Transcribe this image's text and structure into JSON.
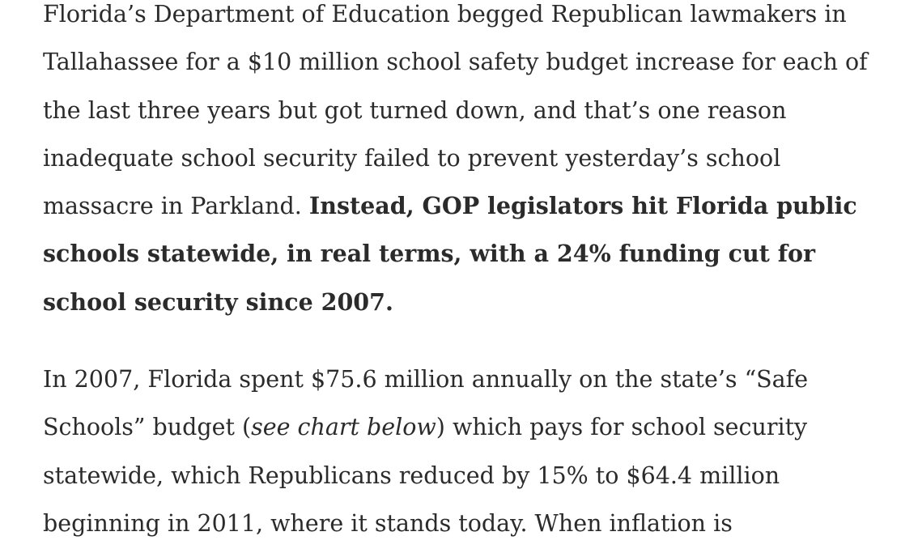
{
  "article": {
    "paragraph1": {
      "text": "Florida’s Department of Education begged Republican lawmakers in Tallahassee for a $10 million school safety budget increase for each of the last three years but got turned down, and that’s one reason inadequate school security failed to prevent yesterday’s school massacre in Parkland. ",
      "bold": "Instead, GOP legislators hit Florida public schools statewide, in real terms, with a 24% funding cut for school security since 2007."
    },
    "paragraph2": {
      "text_before": "In 2007, Florida spent $75.6 million annually on the state’s “Safe Schools” budget (",
      "italic": "see chart below",
      "text_after": ") which pays for school security statewide, which Republicans reduced by 15% to $64.4 million beginning in 2011, where it stands today. When inflation is"
    }
  }
}
